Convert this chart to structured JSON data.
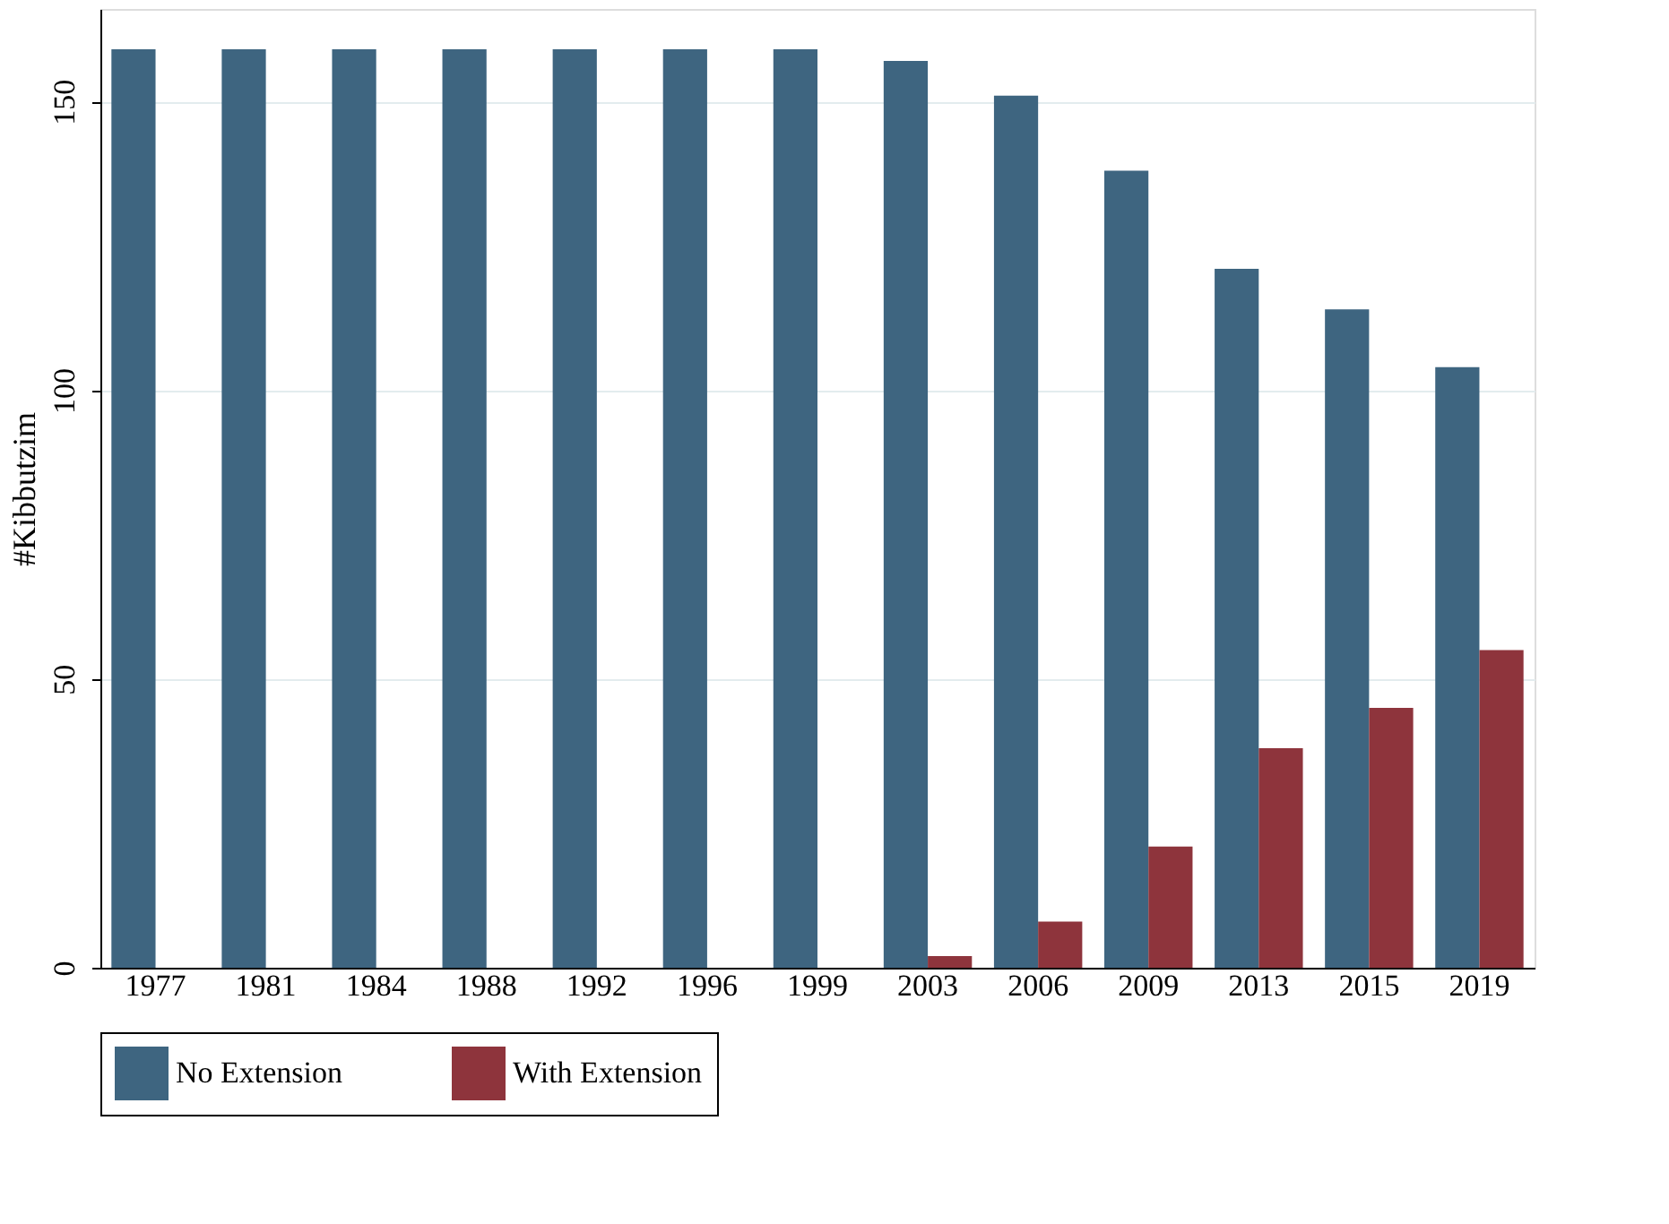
{
  "chart_data": {
    "type": "bar",
    "ylabel": "#Kibbutzim",
    "categories": [
      "1977",
      "1981",
      "1984",
      "1988",
      "1992",
      "1996",
      "1999",
      "2003",
      "2006",
      "2009",
      "2013",
      "2015",
      "2019"
    ],
    "series": [
      {
        "name": "No Extension",
        "color": "#3e6580",
        "values": [
          159,
          159,
          159,
          159,
          159,
          159,
          159,
          157,
          151,
          138,
          121,
          114,
          104
        ]
      },
      {
        "name": "With Extension",
        "color": "#8e343c",
        "values": [
          0,
          0,
          0,
          0,
          0,
          0,
          0,
          2,
          8,
          21,
          38,
          45,
          55
        ]
      }
    ],
    "ylim": [
      0,
      166
    ],
    "yticks": [
      0,
      50,
      100,
      150
    ],
    "grid": "y",
    "legend": "bottom"
  }
}
